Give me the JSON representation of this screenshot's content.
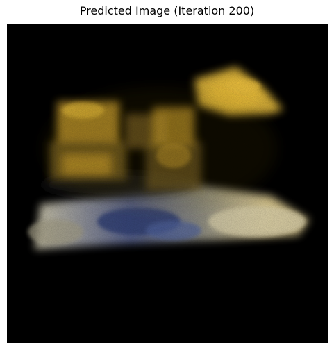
{
  "figure": {
    "title": "Predicted Image (Iteration 200)"
  },
  "image": {
    "background_color": "#000000",
    "colors": {
      "yellow_bright": "#e2b83a",
      "yellow_mid": "#b8902a",
      "yellow_dark": "#6a5420",
      "gray_light": "#d2c8a6",
      "gray_mid": "#9a957f",
      "blue": "#2e3d6e",
      "blue_light": "#4b5e94"
    }
  }
}
